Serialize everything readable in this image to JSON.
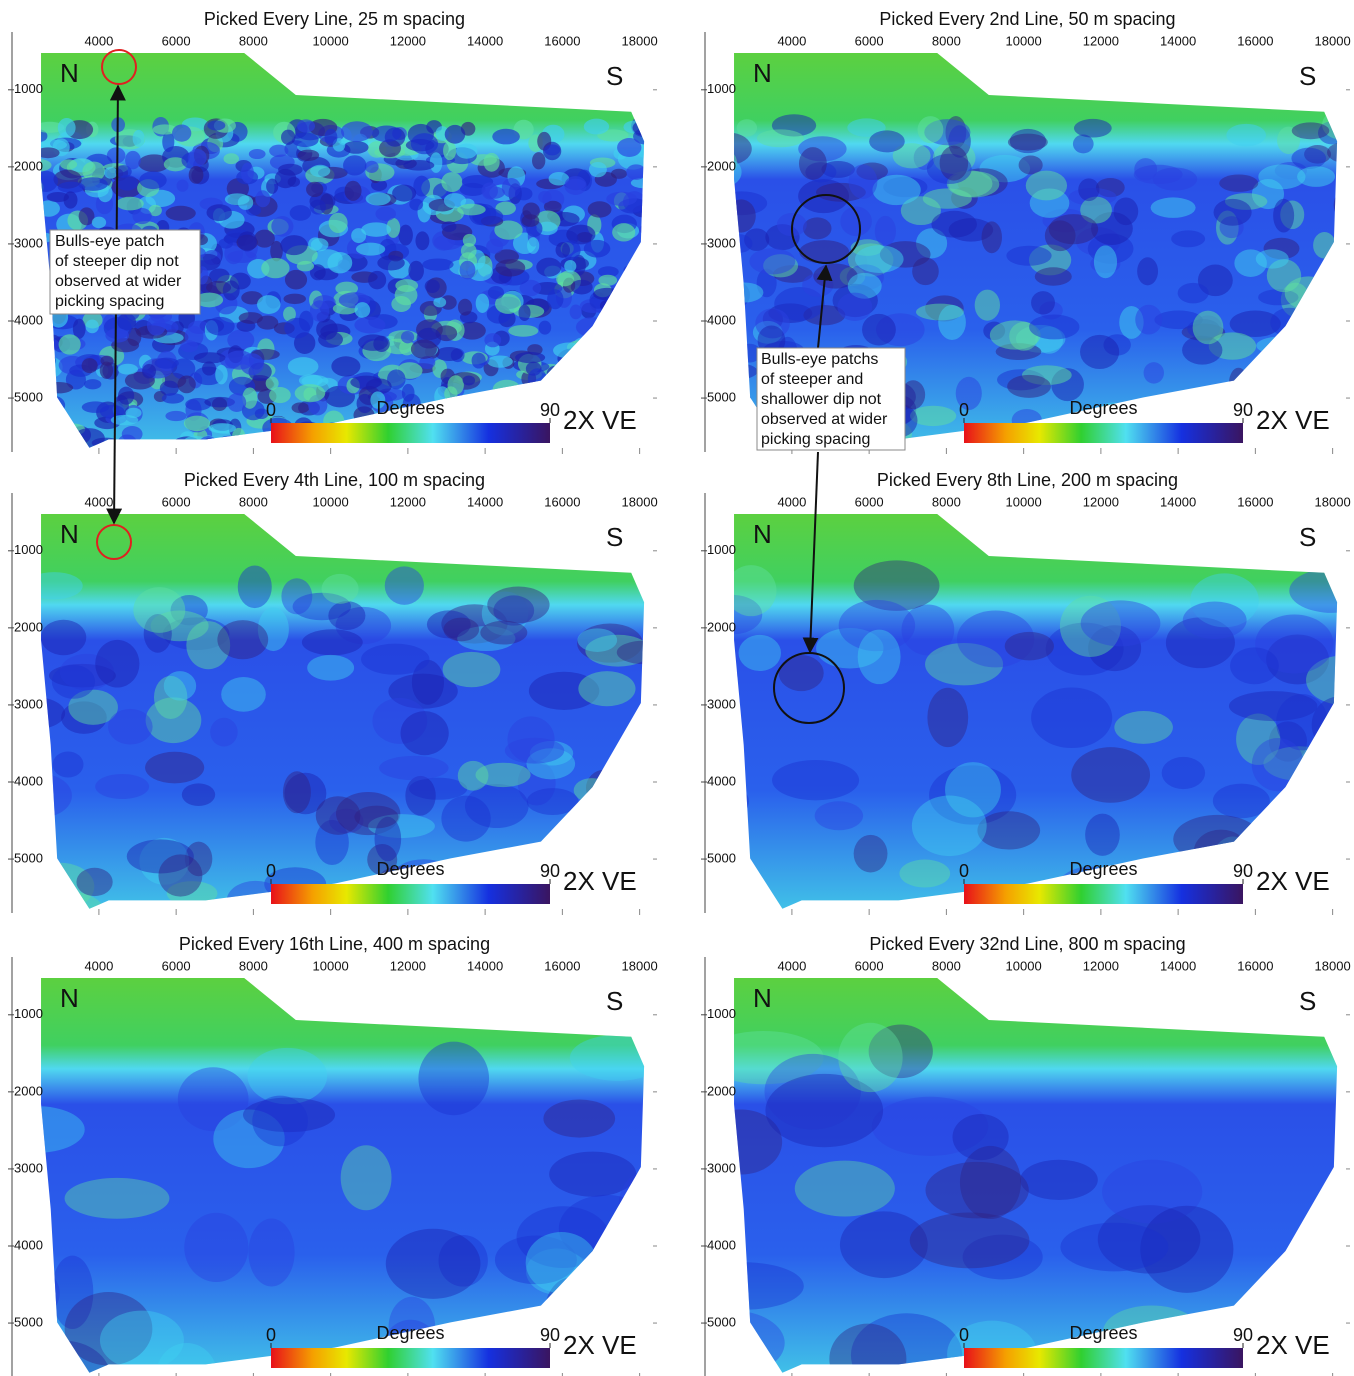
{
  "chart_data": [
    {
      "type": "heatmap",
      "title": "Picked Every Line, 25 m spacing",
      "xlim": [
        1750,
        18450
      ],
      "xticks": [
        4000,
        6000,
        8000,
        10000,
        12000,
        14000,
        16000,
        18000
      ],
      "ylim": [
        250,
        5700
      ],
      "yticks": [
        1000,
        2000,
        3000,
        4000,
        5000
      ],
      "y_inverted": true,
      "north": "N",
      "south": "S",
      "smoothness": 1,
      "colorbar": {
        "label": "Degrees",
        "lim": [
          0,
          90
        ],
        "ticks": [
          0,
          90
        ]
      },
      "exaggeration": "2X VE",
      "annotation": [
        "Bulls-eye patch",
        "of steeper dip not",
        "observed at wider",
        "picking spacing"
      ]
    },
    {
      "type": "heatmap",
      "title": "Picked Every 2nd Line, 50 m spacing",
      "xlim": [
        1750,
        18450
      ],
      "xticks": [
        4000,
        6000,
        8000,
        10000,
        12000,
        14000,
        16000,
        18000
      ],
      "ylim": [
        250,
        5700
      ],
      "yticks": [
        1000,
        2000,
        3000,
        4000,
        5000
      ],
      "y_inverted": true,
      "north": "N",
      "south": "S",
      "smoothness": 2,
      "colorbar": {
        "label": "Degrees",
        "lim": [
          0,
          90
        ],
        "ticks": [
          0,
          90
        ]
      },
      "exaggeration": "2X VE",
      "annotation": [
        "Bulls-eye patchs",
        "of steeper and",
        "shallower dip not",
        "observed at wider",
        "picking spacing"
      ]
    },
    {
      "type": "heatmap",
      "title": "Picked Every 4th Line, 100 m spacing",
      "xlim": [
        1750,
        18450
      ],
      "xticks": [
        4000,
        6000,
        8000,
        10000,
        12000,
        14000,
        16000,
        18000
      ],
      "ylim": [
        250,
        5700
      ],
      "yticks": [
        1000,
        2000,
        3000,
        4000,
        5000
      ],
      "y_inverted": true,
      "north": "N",
      "south": "S",
      "smoothness": 3,
      "colorbar": {
        "label": "Degrees",
        "lim": [
          0,
          90
        ],
        "ticks": [
          0,
          90
        ]
      },
      "exaggeration": "2X VE"
    },
    {
      "type": "heatmap",
      "title": "Picked Every 8th Line, 200 m spacing",
      "xlim": [
        1750,
        18450
      ],
      "xticks": [
        4000,
        6000,
        8000,
        10000,
        12000,
        14000,
        16000,
        18000
      ],
      "ylim": [
        250,
        5700
      ],
      "yticks": [
        1000,
        2000,
        3000,
        4000,
        5000
      ],
      "y_inverted": true,
      "north": "N",
      "south": "S",
      "smoothness": 4,
      "colorbar": {
        "label": "Degrees",
        "lim": [
          0,
          90
        ],
        "ticks": [
          0,
          90
        ]
      },
      "exaggeration": "2X VE"
    },
    {
      "type": "heatmap",
      "title": "Picked Every 16th Line, 400 m spacing",
      "xlim": [
        1750,
        18450
      ],
      "xticks": [
        4000,
        6000,
        8000,
        10000,
        12000,
        14000,
        16000,
        18000
      ],
      "ylim": [
        250,
        5700
      ],
      "yticks": [
        1000,
        2000,
        3000,
        4000,
        5000
      ],
      "y_inverted": true,
      "north": "N",
      "south": "S",
      "smoothness": 5,
      "colorbar": {
        "label": "Degrees",
        "lim": [
          0,
          90
        ],
        "ticks": [
          0,
          90
        ]
      },
      "exaggeration": "2X VE"
    },
    {
      "type": "heatmap",
      "title": "Picked Every 32nd Line, 800 m spacing",
      "xlim": [
        1750,
        18450
      ],
      "xticks": [
        4000,
        6000,
        8000,
        10000,
        12000,
        14000,
        16000,
        18000
      ],
      "ylim": [
        250,
        5700
      ],
      "yticks": [
        1000,
        2000,
        3000,
        4000,
        5000
      ],
      "y_inverted": true,
      "north": "N",
      "south": "S",
      "smoothness": 6,
      "colorbar": {
        "label": "Degrees",
        "lim": [
          0,
          90
        ],
        "ticks": [
          0,
          90
        ]
      },
      "exaggeration": "2X VE"
    }
  ]
}
